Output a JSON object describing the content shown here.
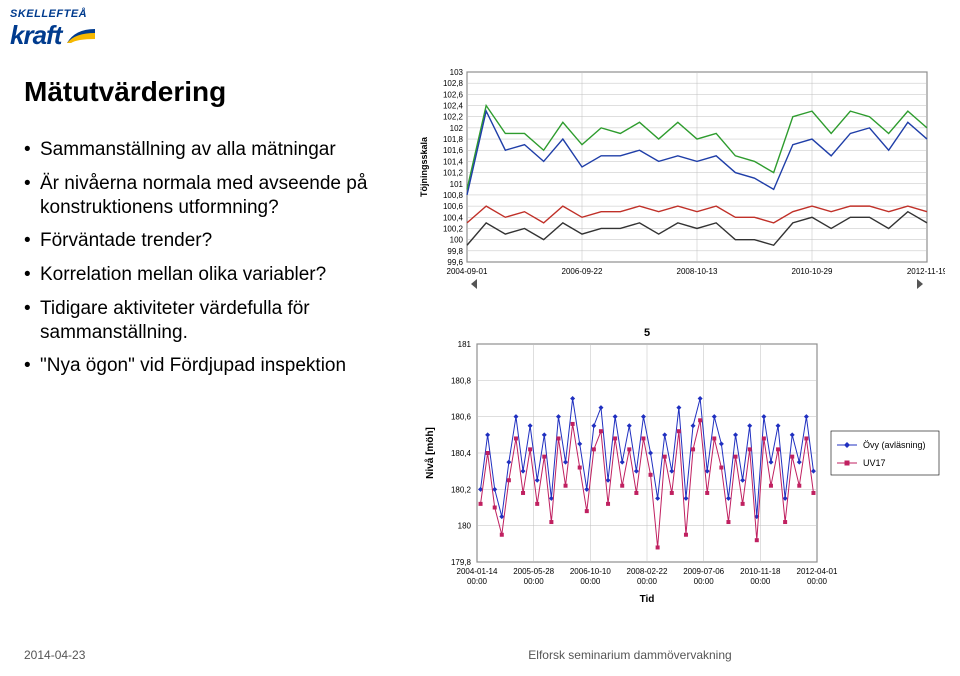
{
  "logo": {
    "top_text": "SKELLEFTEÅ",
    "brand": "kraft",
    "blue": "#003b8e",
    "yellow": "#f6b800"
  },
  "title": "Mätutvärdering",
  "bullets": [
    "Sammanställning av alla mätningar",
    "Är nivåerna normala med avseende på konstruktionens utformning?",
    "Förväntade trender?",
    "Korrelation mellan olika variabler?",
    "Tidigare aktiviteter värdefulla för sammanställning.",
    "\"Nya ögon\" vid Fördjupad inspektion"
  ],
  "chart_top": {
    "type": "line",
    "ylabel_rot": "Töjningsskala",
    "yticks": [
      99.6,
      99.8,
      100,
      100.2,
      100.4,
      100.6,
      100.8,
      101,
      101.2,
      101.4,
      101.6,
      101.8,
      102,
      102.2,
      102.4,
      102.6,
      102.8,
      103
    ],
    "ylim": [
      99.6,
      103
    ],
    "xticks": [
      "2004-09-01",
      "2006-09-22",
      "2008-10-13",
      "2010-10-29",
      "2012-11-19"
    ],
    "x_domain": [
      0,
      96
    ],
    "series": [
      {
        "color": "#2e9c2e",
        "points": [
          [
            0,
            100.9
          ],
          [
            4,
            102.4
          ],
          [
            8,
            101.9
          ],
          [
            12,
            101.9
          ],
          [
            16,
            101.6
          ],
          [
            20,
            102.1
          ],
          [
            24,
            101.7
          ],
          [
            28,
            102.0
          ],
          [
            32,
            101.9
          ],
          [
            36,
            102.1
          ],
          [
            40,
            101.8
          ],
          [
            44,
            102.1
          ],
          [
            48,
            101.8
          ],
          [
            52,
            101.9
          ],
          [
            56,
            101.5
          ],
          [
            60,
            101.4
          ],
          [
            64,
            101.2
          ],
          [
            68,
            102.2
          ],
          [
            72,
            102.3
          ],
          [
            76,
            101.9
          ],
          [
            80,
            102.3
          ],
          [
            84,
            102.2
          ],
          [
            88,
            101.9
          ],
          [
            92,
            102.3
          ],
          [
            96,
            102.0
          ]
        ]
      },
      {
        "color": "#1f3ea8",
        "points": [
          [
            0,
            100.8
          ],
          [
            4,
            102.3
          ],
          [
            8,
            101.6
          ],
          [
            12,
            101.7
          ],
          [
            16,
            101.4
          ],
          [
            20,
            101.8
          ],
          [
            24,
            101.3
          ],
          [
            28,
            101.5
          ],
          [
            32,
            101.5
          ],
          [
            36,
            101.6
          ],
          [
            40,
            101.4
          ],
          [
            44,
            101.5
          ],
          [
            48,
            101.4
          ],
          [
            52,
            101.5
          ],
          [
            56,
            101.2
          ],
          [
            60,
            101.1
          ],
          [
            64,
            100.9
          ],
          [
            68,
            101.7
          ],
          [
            72,
            101.8
          ],
          [
            76,
            101.5
          ],
          [
            80,
            101.9
          ],
          [
            84,
            102.0
          ],
          [
            88,
            101.6
          ],
          [
            92,
            102.1
          ],
          [
            96,
            101.8
          ]
        ]
      },
      {
        "color": "#c03028",
        "points": [
          [
            0,
            100.3
          ],
          [
            4,
            100.6
          ],
          [
            8,
            100.4
          ],
          [
            12,
            100.5
          ],
          [
            16,
            100.3
          ],
          [
            20,
            100.6
          ],
          [
            24,
            100.4
          ],
          [
            28,
            100.5
          ],
          [
            32,
            100.5
          ],
          [
            36,
            100.6
          ],
          [
            40,
            100.5
          ],
          [
            44,
            100.6
          ],
          [
            48,
            100.5
          ],
          [
            52,
            100.6
          ],
          [
            56,
            100.4
          ],
          [
            60,
            100.4
          ],
          [
            64,
            100.3
          ],
          [
            68,
            100.5
          ],
          [
            72,
            100.6
          ],
          [
            76,
            100.5
          ],
          [
            80,
            100.6
          ],
          [
            84,
            100.6
          ],
          [
            88,
            100.5
          ],
          [
            92,
            100.6
          ],
          [
            96,
            100.5
          ]
        ]
      },
      {
        "color": "#333333",
        "points": [
          [
            0,
            99.9
          ],
          [
            4,
            100.3
          ],
          [
            8,
            100.1
          ],
          [
            12,
            100.2
          ],
          [
            16,
            100.0
          ],
          [
            20,
            100.3
          ],
          [
            24,
            100.1
          ],
          [
            28,
            100.2
          ],
          [
            32,
            100.2
          ],
          [
            36,
            100.3
          ],
          [
            40,
            100.1
          ],
          [
            44,
            100.3
          ],
          [
            48,
            100.2
          ],
          [
            52,
            100.3
          ],
          [
            56,
            100.0
          ],
          [
            60,
            100.0
          ],
          [
            64,
            99.9
          ],
          [
            68,
            100.3
          ],
          [
            72,
            100.4
          ],
          [
            76,
            100.2
          ],
          [
            80,
            100.4
          ],
          [
            84,
            100.4
          ],
          [
            88,
            100.2
          ],
          [
            92,
            100.5
          ],
          [
            96,
            100.3
          ]
        ]
      }
    ],
    "background_color": "#ffffff",
    "grid_color": "#bfbfbf",
    "axis_color": "#000000",
    "tick_fontsize": 8,
    "scroll_arrow_color": "#555555"
  },
  "chart_bottom": {
    "type": "line",
    "xlabel": "Tid",
    "ylabel": "Nivå [möh]",
    "legend_title": "5",
    "legend": [
      {
        "label": "Övy (avläsning)",
        "color": "#2030c0",
        "marker": "diamond"
      },
      {
        "label": "UV17",
        "color": "#c02060",
        "marker": "square"
      }
    ],
    "yticks": [
      179.8,
      180,
      180.2,
      180.4,
      180.6,
      180.8,
      181
    ],
    "ylim": [
      179.8,
      181
    ],
    "xticks": [
      "2004-01-14 00:00",
      "2005-05-28 00:00",
      "2006-10-10 00:00",
      "2008-02-22 00:00",
      "2009-07-06 00:00",
      "2010-11-18 00:00",
      "2012-04-01 00:00"
    ],
    "x_domain": [
      0,
      96
    ],
    "series": [
      {
        "color": "#2030c0",
        "marker": "diamond",
        "points": [
          [
            1,
            180.2
          ],
          [
            3,
            180.5
          ],
          [
            5,
            180.2
          ],
          [
            7,
            180.05
          ],
          [
            9,
            180.35
          ],
          [
            11,
            180.6
          ],
          [
            13,
            180.3
          ],
          [
            15,
            180.55
          ],
          [
            17,
            180.25
          ],
          [
            19,
            180.5
          ],
          [
            21,
            180.15
          ],
          [
            23,
            180.6
          ],
          [
            25,
            180.35
          ],
          [
            27,
            180.7
          ],
          [
            29,
            180.45
          ],
          [
            31,
            180.2
          ],
          [
            33,
            180.55
          ],
          [
            35,
            180.65
          ],
          [
            37,
            180.25
          ],
          [
            39,
            180.6
          ],
          [
            41,
            180.35
          ],
          [
            43,
            180.55
          ],
          [
            45,
            180.3
          ],
          [
            47,
            180.6
          ],
          [
            49,
            180.4
          ],
          [
            51,
            180.15
          ],
          [
            53,
            180.5
          ],
          [
            55,
            180.3
          ],
          [
            57,
            180.65
          ],
          [
            59,
            180.15
          ],
          [
            61,
            180.55
          ],
          [
            63,
            180.7
          ],
          [
            65,
            180.3
          ],
          [
            67,
            180.6
          ],
          [
            69,
            180.45
          ],
          [
            71,
            180.15
          ],
          [
            73,
            180.5
          ],
          [
            75,
            180.25
          ],
          [
            77,
            180.55
          ],
          [
            79,
            180.05
          ],
          [
            81,
            180.6
          ],
          [
            83,
            180.35
          ],
          [
            85,
            180.55
          ],
          [
            87,
            180.15
          ],
          [
            89,
            180.5
          ],
          [
            91,
            180.35
          ],
          [
            93,
            180.6
          ],
          [
            95,
            180.3
          ]
        ]
      },
      {
        "color": "#c02060",
        "marker": "square",
        "points": [
          [
            1,
            180.12
          ],
          [
            3,
            180.4
          ],
          [
            5,
            180.1
          ],
          [
            7,
            179.95
          ],
          [
            9,
            180.25
          ],
          [
            11,
            180.48
          ],
          [
            13,
            180.18
          ],
          [
            15,
            180.42
          ],
          [
            17,
            180.12
          ],
          [
            19,
            180.38
          ],
          [
            21,
            180.02
          ],
          [
            23,
            180.48
          ],
          [
            25,
            180.22
          ],
          [
            27,
            180.56
          ],
          [
            29,
            180.32
          ],
          [
            31,
            180.08
          ],
          [
            33,
            180.42
          ],
          [
            35,
            180.52
          ],
          [
            37,
            180.12
          ],
          [
            39,
            180.48
          ],
          [
            41,
            180.22
          ],
          [
            43,
            180.42
          ],
          [
            45,
            180.18
          ],
          [
            47,
            180.48
          ],
          [
            49,
            180.28
          ],
          [
            51,
            179.88
          ],
          [
            53,
            180.38
          ],
          [
            55,
            180.18
          ],
          [
            57,
            180.52
          ],
          [
            59,
            179.95
          ],
          [
            61,
            180.42
          ],
          [
            63,
            180.58
          ],
          [
            65,
            180.18
          ],
          [
            67,
            180.48
          ],
          [
            69,
            180.32
          ],
          [
            71,
            180.02
          ],
          [
            73,
            180.38
          ],
          [
            75,
            180.12
          ],
          [
            77,
            180.42
          ],
          [
            79,
            179.92
          ],
          [
            81,
            180.48
          ],
          [
            83,
            180.22
          ],
          [
            85,
            180.42
          ],
          [
            87,
            180.02
          ],
          [
            89,
            180.38
          ],
          [
            91,
            180.22
          ],
          [
            93,
            180.48
          ],
          [
            95,
            180.18
          ]
        ]
      }
    ],
    "background_color": "#ffffff",
    "grid_color": "#bfbfbf",
    "axis_color": "#000000",
    "tick_fontsize": 8
  },
  "footer": {
    "date": "2014-04-23",
    "center": "Elforsk seminarium dammövervakning"
  }
}
